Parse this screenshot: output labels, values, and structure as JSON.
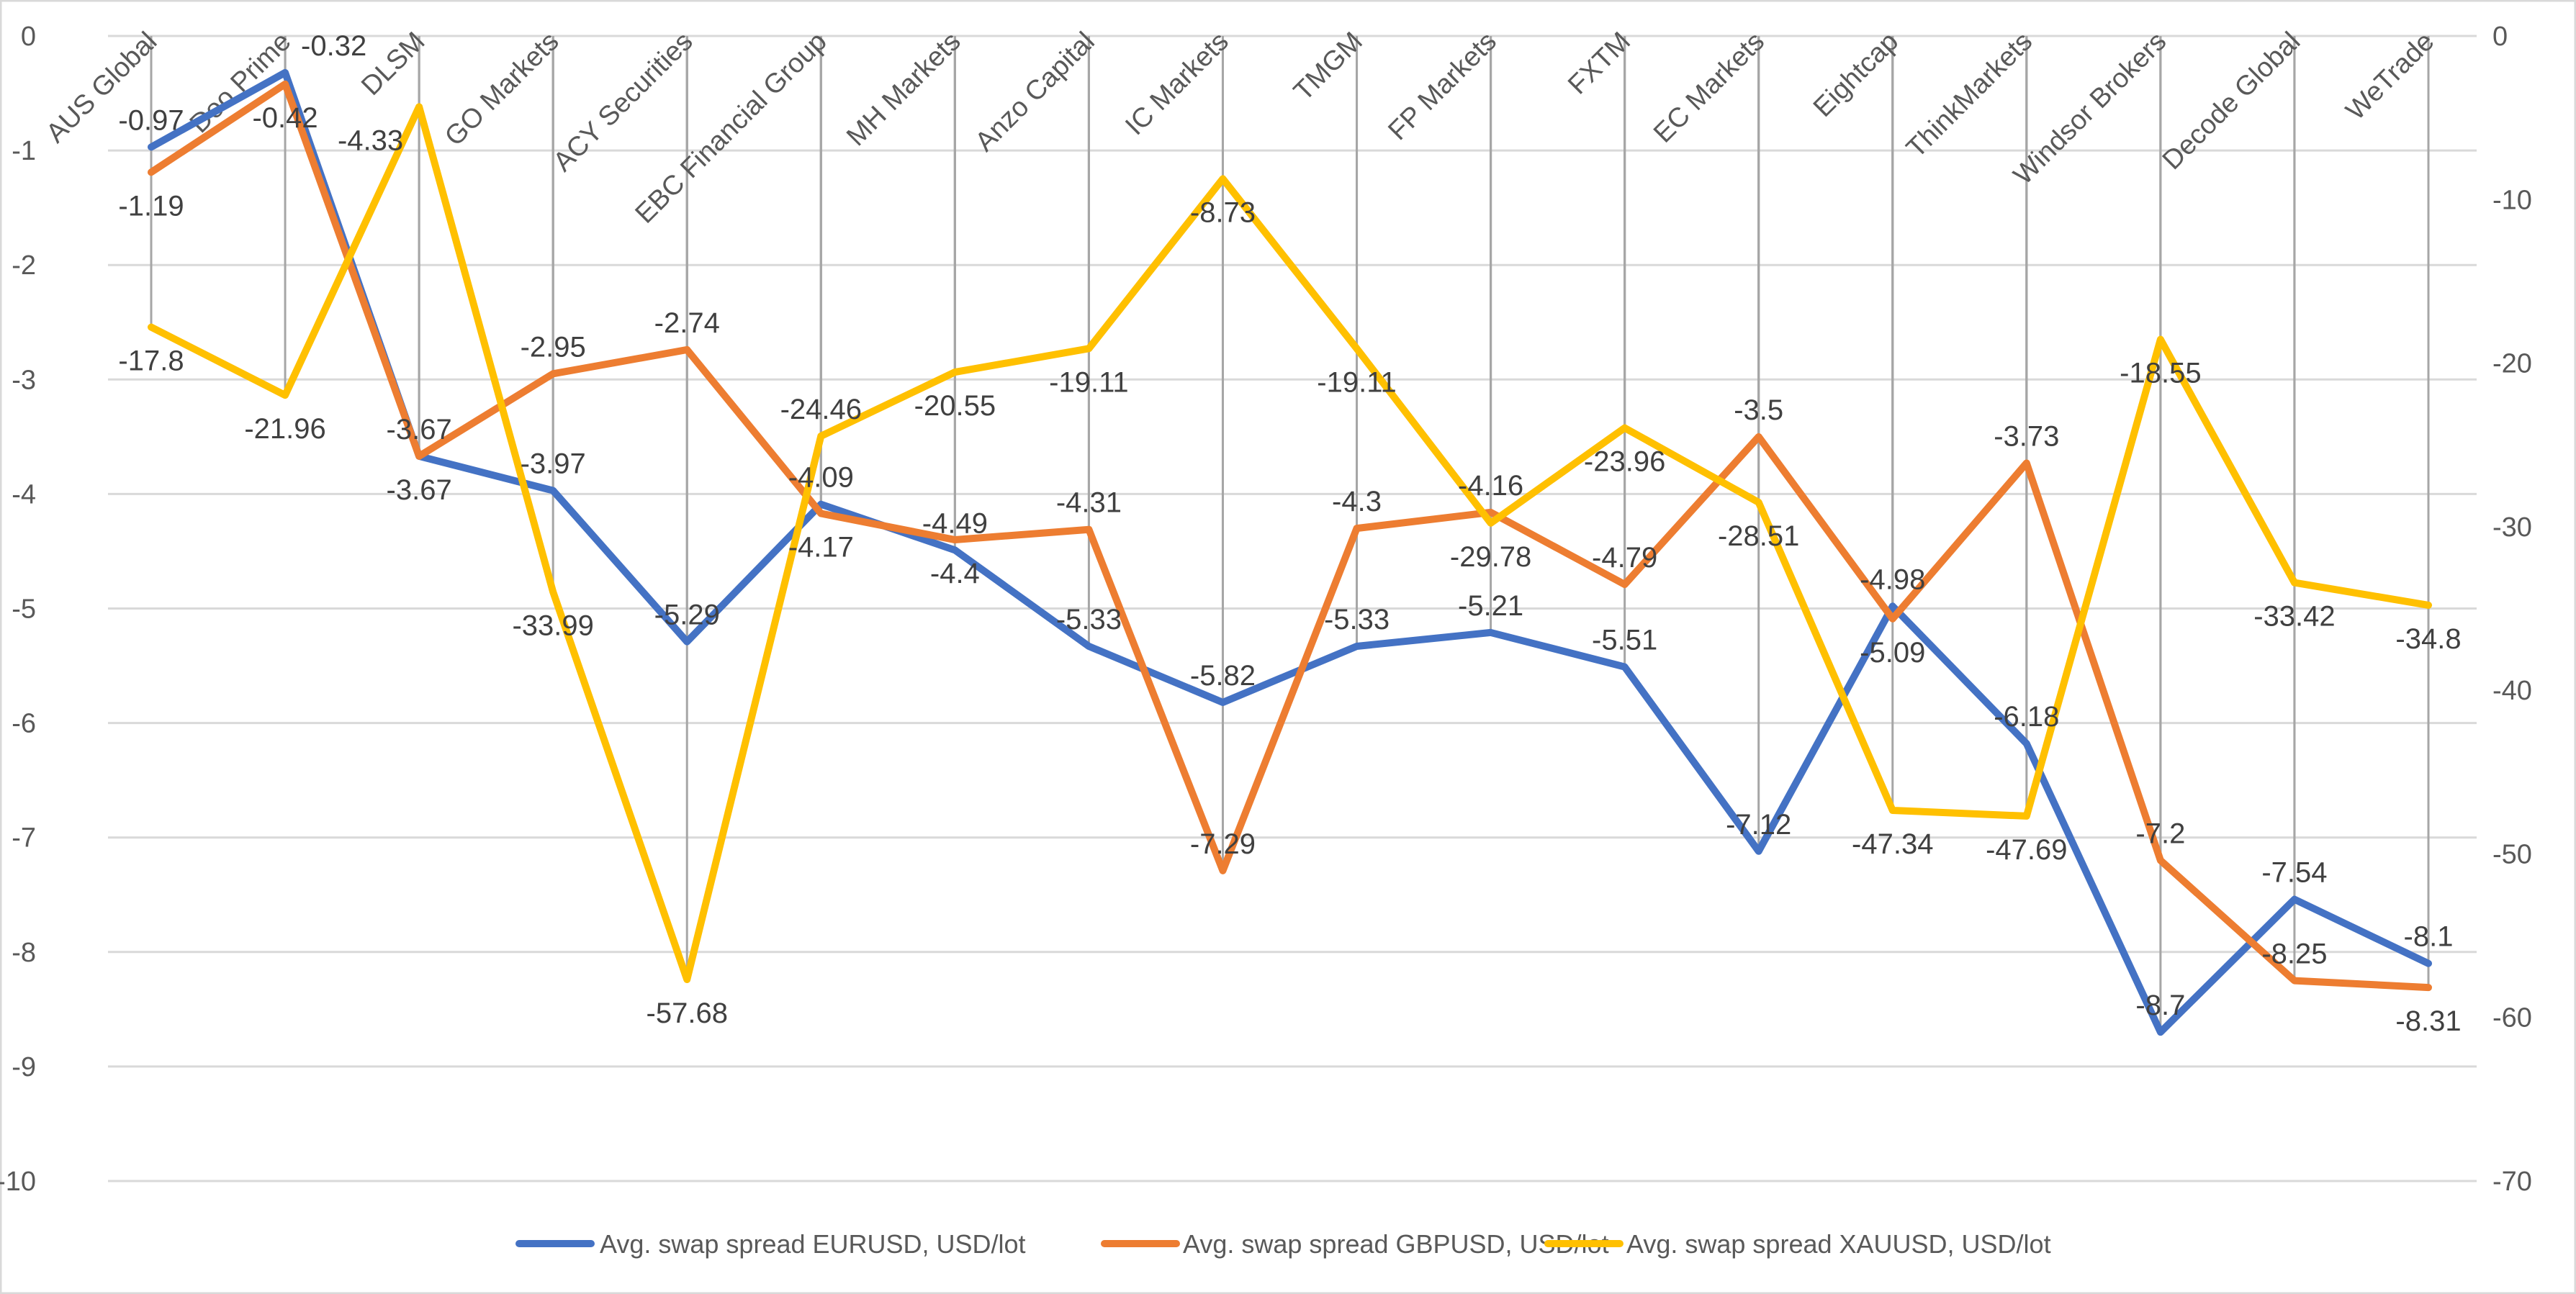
{
  "chart_data": {
    "type": "line",
    "categories": [
      "AUS Global",
      "Doo Prime",
      "DLSM",
      "GO Markets",
      "ACY Securities",
      "EBC Financial Group",
      "MH Markets",
      "Anzo Capital",
      "IC Markets",
      "TMGM",
      "FP Markets",
      "FXTM",
      "EC Markets",
      "Eightcap",
      "ThinkMarkets",
      "Windsor Brokers",
      "Decode Global",
      "WeTrade"
    ],
    "series": [
      {
        "name": "Avg. swap spread EURUSD, USD/lot",
        "color": "#4472C4",
        "axis": "left",
        "label_position": "above",
        "values": [
          -0.97,
          -0.32,
          -3.67,
          -3.97,
          -5.29,
          -4.09,
          -4.49,
          -5.33,
          -5.82,
          -5.33,
          -5.21,
          -5.51,
          -7.12,
          -4.98,
          -6.18,
          -8.7,
          -7.54,
          -8.1
        ]
      },
      {
        "name": "Avg. swap spread GBPUSD, USD/lot",
        "color": "#ED7D31",
        "axis": "left",
        "label_position": "above",
        "values": [
          -1.19,
          -0.42,
          -3.67,
          -2.95,
          -2.74,
          -4.17,
          -4.4,
          -4.31,
          -7.29,
          -4.3,
          -4.16,
          -4.79,
          -3.5,
          -5.09,
          -3.73,
          -7.2,
          -8.25,
          -8.31
        ]
      },
      {
        "name": "Avg. swap spread XAUUSD, USD/lot",
        "color": "#FFC000",
        "axis": "right",
        "label_position": "below",
        "values": [
          -17.8,
          -21.96,
          -4.33,
          -33.99,
          -57.68,
          -24.46,
          -20.55,
          -19.11,
          -8.73,
          -19.11,
          -29.78,
          -23.96,
          -28.51,
          -47.34,
          -47.69,
          -18.55,
          -33.42,
          -34.8
        ]
      }
    ],
    "left_axis": {
      "ylim": [
        -10,
        0
      ],
      "ticks": [
        "0",
        "-1",
        "-2",
        "-3",
        "-4",
        "-5",
        "-6",
        "-7",
        "-8",
        "-9",
        "-10"
      ]
    },
    "right_axis": {
      "ylim": [
        -70,
        0
      ],
      "ticks": [
        "0",
        "-10",
        "-20",
        "-30",
        "-40",
        "-50",
        "-60",
        "-70"
      ]
    },
    "category_axis_position": "top",
    "drop_lines": true,
    "grid": true,
    "legend_position": "bottom",
    "data_labels": true
  }
}
